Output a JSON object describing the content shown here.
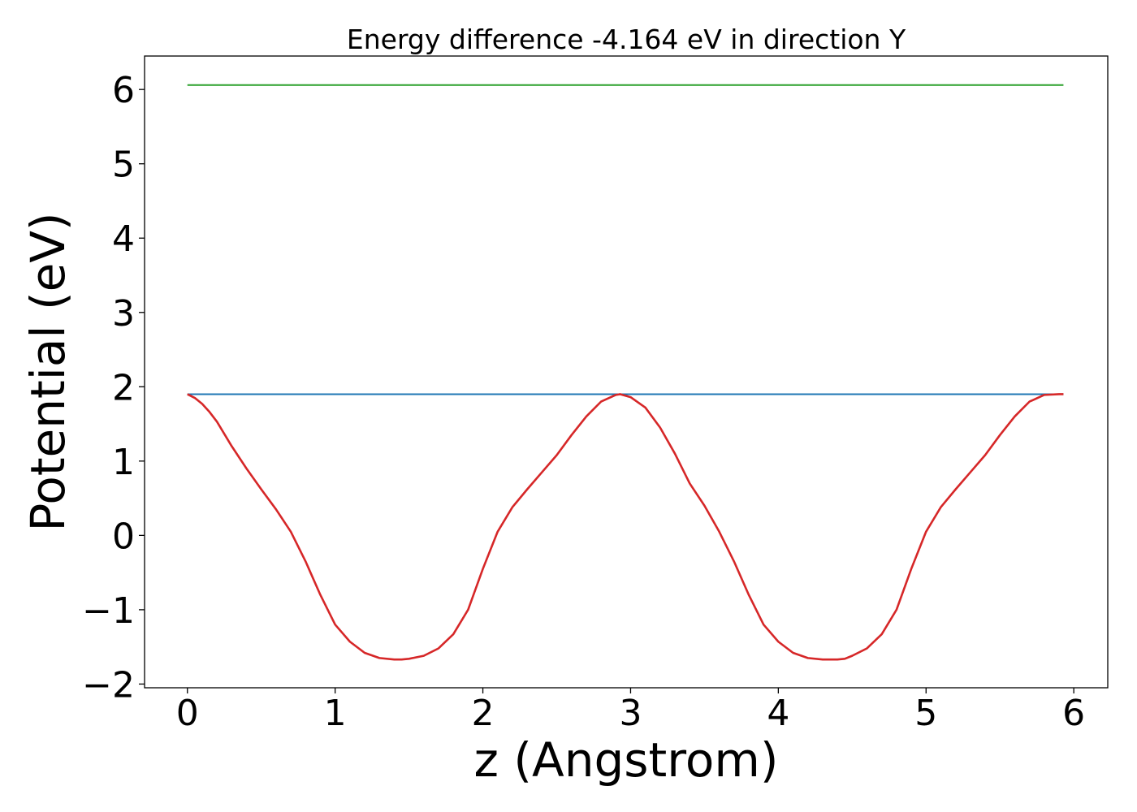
{
  "chart_data": {
    "type": "line",
    "title": "Energy difference -4.164 eV in direction Y",
    "xlabel": "z (Angstrom)",
    "ylabel": "Potential (eV)",
    "xlim": [
      -0.29,
      6.23
    ],
    "ylim": [
      -2.05,
      6.45
    ],
    "xticks": [
      0,
      1,
      2,
      3,
      4,
      5,
      6
    ],
    "yticks": [
      -2,
      -1,
      0,
      1,
      2,
      3,
      4,
      5,
      6
    ],
    "xtick_labels": [
      "0",
      "1",
      "2",
      "3",
      "4",
      "5",
      "6"
    ],
    "ytick_labels": [
      "−2",
      "−1",
      "0",
      "1",
      "2",
      "3",
      "4",
      "5",
      "6"
    ],
    "grid": false,
    "series": [
      {
        "color": "#2ca02c",
        "x": [
          0,
          5.93
        ],
        "y": [
          6.06,
          6.06
        ]
      },
      {
        "color": "#1f77b4",
        "x": [
          0,
          5.93
        ],
        "y": [
          1.9,
          1.9
        ]
      },
      {
        "color": "#d62728",
        "x": [
          0,
          0.05,
          0.1,
          0.15,
          0.2,
          0.3,
          0.4,
          0.5,
          0.6,
          0.7,
          0.8,
          0.9,
          1.0,
          1.1,
          1.2,
          1.3,
          1.4,
          1.45,
          1.5,
          1.6,
          1.7,
          1.8,
          1.9,
          2.0,
          2.1,
          2.2,
          2.3,
          2.4,
          2.5,
          2.6,
          2.7,
          2.8,
          2.9,
          2.93,
          3.0,
          3.1,
          3.2,
          3.3,
          3.4,
          3.5,
          3.6,
          3.7,
          3.8,
          3.9,
          4.0,
          4.1,
          4.2,
          4.3,
          4.4,
          4.45,
          4.5,
          4.6,
          4.7,
          4.8,
          4.9,
          5.0,
          5.1,
          5.2,
          5.3,
          5.4,
          5.5,
          5.6,
          5.7,
          5.8,
          5.9,
          5.93
        ],
        "y": [
          1.9,
          1.85,
          1.77,
          1.66,
          1.53,
          1.2,
          0.9,
          0.62,
          0.35,
          0.05,
          -0.35,
          -0.8,
          -1.2,
          -1.43,
          -1.58,
          -1.65,
          -1.67,
          -1.67,
          -1.66,
          -1.62,
          -1.52,
          -1.33,
          -1.0,
          -0.45,
          0.05,
          0.38,
          0.62,
          0.85,
          1.08,
          1.35,
          1.6,
          1.8,
          1.89,
          1.9,
          1.86,
          1.72,
          1.45,
          1.1,
          0.7,
          0.4,
          0.05,
          -0.35,
          -0.8,
          -1.2,
          -1.43,
          -1.58,
          -1.65,
          -1.67,
          -1.67,
          -1.66,
          -1.62,
          -1.52,
          -1.33,
          -1.0,
          -0.45,
          0.05,
          0.38,
          0.62,
          0.85,
          1.08,
          1.35,
          1.6,
          1.8,
          1.89,
          1.9,
          1.9
        ]
      }
    ]
  }
}
